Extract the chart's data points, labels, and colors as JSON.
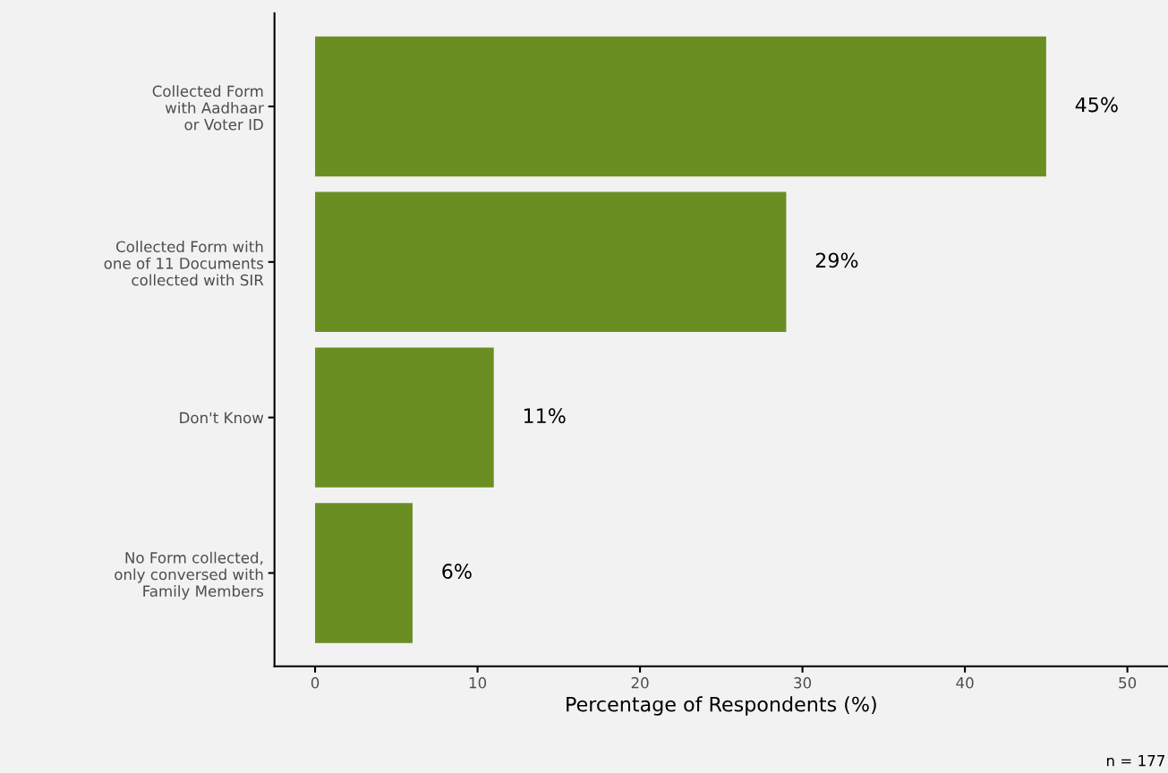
{
  "chart_data": {
    "type": "bar",
    "orientation": "horizontal",
    "categories": [
      "Collected Form\nwith Aadhaar\nor Voter ID",
      "Collected Form with\none of 11 Documents\ncollected with SIR",
      "Don't Know",
      "No Form collected,\nonly conversed with\nFamily Members"
    ],
    "values": [
      45,
      29,
      11,
      6
    ],
    "value_labels": [
      "45%",
      "29%",
      "11%",
      "6%"
    ],
    "color": "#6b8e23",
    "xlabel": "Percentage of Respondents (%)",
    "xlim": [
      -2.5,
      52.5
    ],
    "xticks": [
      0,
      10,
      20,
      30,
      40,
      50
    ],
    "grid": false,
    "legend": false,
    "annotations": [
      "n = 177"
    ]
  }
}
